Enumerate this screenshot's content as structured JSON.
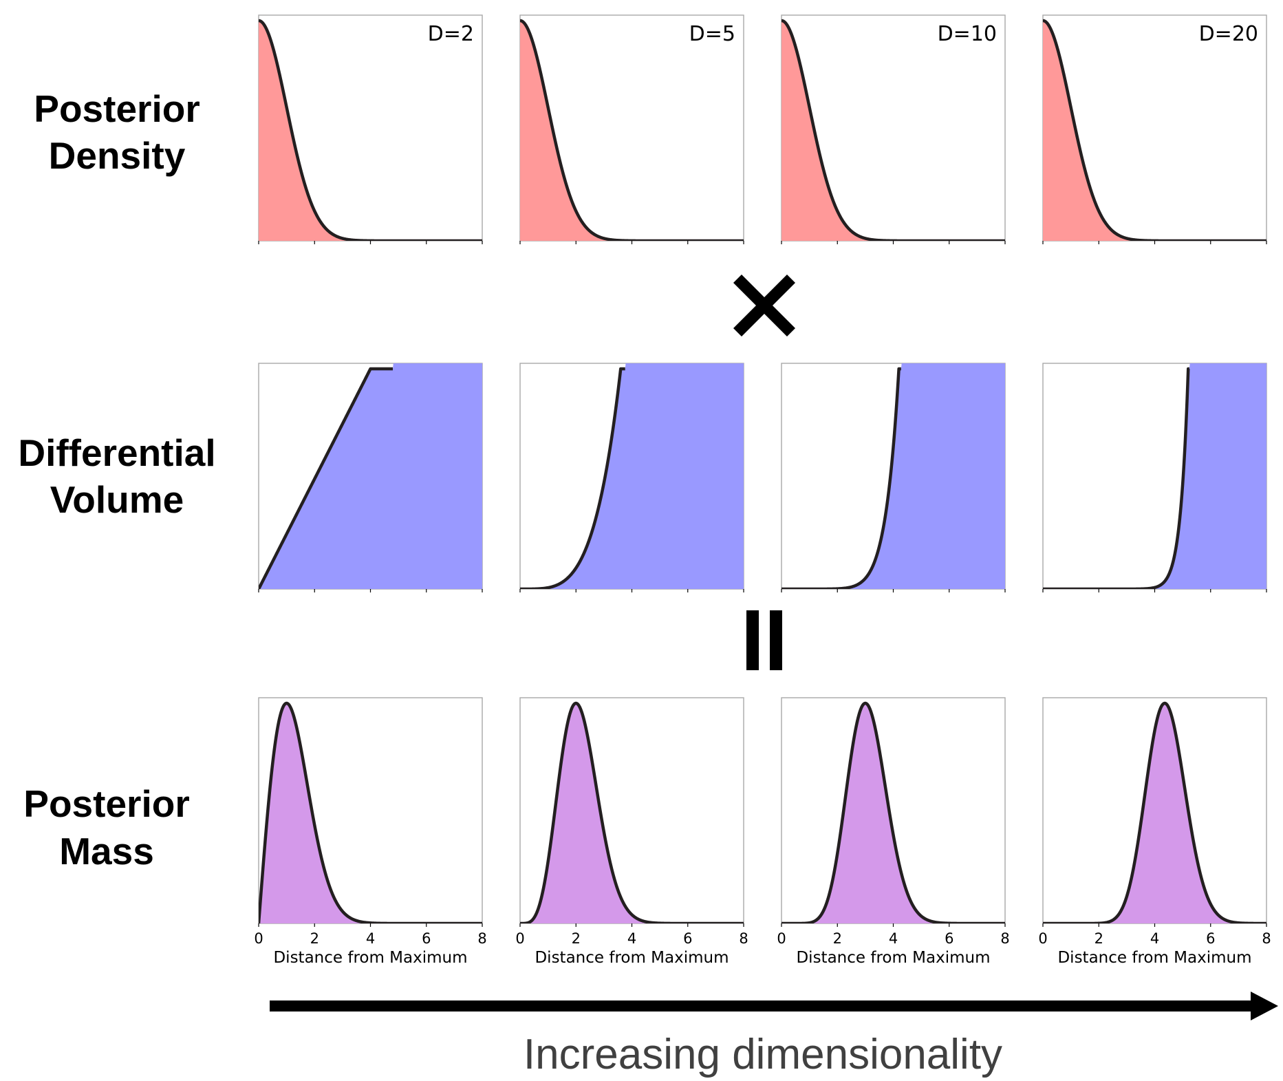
{
  "rows": [
    {
      "id": "density",
      "label_lines": [
        "Posterior",
        "Density"
      ],
      "label_color": "#ff0000",
      "fill_color": "#ff9999"
    },
    {
      "id": "volume",
      "label_lines": [
        "Differential",
        "Volume"
      ],
      "label_color": "#0070c0",
      "fill_color": "#9999ff"
    },
    {
      "id": "mass",
      "label_lines": [
        "Posterior",
        "Mass"
      ],
      "label_color": "#7030a0",
      "fill_color": "#d499ea"
    }
  ],
  "operators": {
    "multiply": "×",
    "equals": "="
  },
  "caption": "Increasing dimensionality",
  "chart_data": {
    "type": "area",
    "xlabel": "Distance from Maximum",
    "xlim": [
      0,
      8
    ],
    "xticks": [
      0,
      2,
      4,
      6,
      8
    ],
    "dimensions": [
      {
        "label": "D=2",
        "D": 2,
        "volume_shown_to_x": 4
      },
      {
        "label": "D=5",
        "D": 5,
        "volume_shown_to_x": 3.6
      },
      {
        "label": "D=10",
        "D": 10,
        "volume_shown_to_x": 4.2
      },
      {
        "label": "D=20",
        "D": 20,
        "volume_shown_to_x": 5.2
      }
    ],
    "series": [
      {
        "name": "Posterior Density",
        "formula": "exp(-x^2/2)",
        "peak_x": [
          0,
          0,
          0,
          0
        ]
      },
      {
        "name": "Differential Volume",
        "formula": "x^(D-1)"
      },
      {
        "name": "Posterior Mass",
        "formula": "x^(D-1) * exp(-x^2/2)",
        "peak_x": [
          1,
          2,
          3,
          4.36
        ]
      }
    ],
    "grid": false
  }
}
